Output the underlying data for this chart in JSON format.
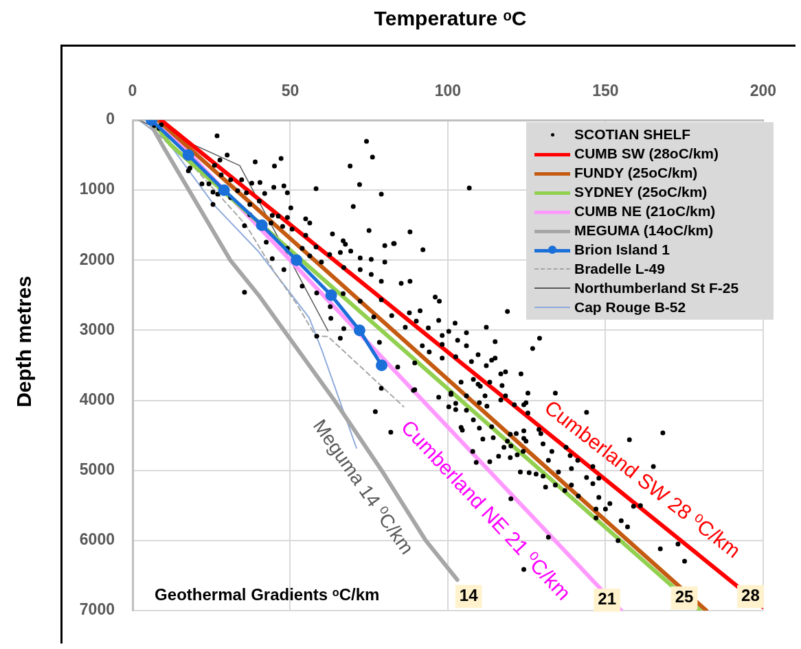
{
  "chart_data": {
    "type": "line",
    "xlabel": "Temperature ᵒC",
    "ylabel": "Depth metres",
    "xlim": [
      0,
      200
    ],
    "xticks": [
      0,
      50,
      100,
      150,
      200
    ],
    "ylim": [
      7000,
      0
    ],
    "yticks": [
      0,
      1000,
      2000,
      3000,
      4000,
      5000,
      6000,
      7000
    ],
    "grid": true,
    "legend": "top right",
    "series": [
      {
        "name": "SCOTIAN SHELF",
        "type": "scatter",
        "color": "#000000",
        "marker": "circle",
        "x": [
          6.9,
          8.4,
          9.1,
          26.8,
          74.2,
          76.1,
          30,
          47.1,
          38.9,
          69,
          45,
          27.7,
          26,
          18.2,
          17.7,
          22,
          24.2,
          28.1,
          31.1,
          34.6,
          37.8,
          40.4,
          44.8,
          48,
          58.2,
          72,
          78.9,
          25.5,
          27,
          31.1,
          33.3,
          36.1,
          41.9,
          49.1,
          25.5,
          37.2,
          40.2,
          50.2,
          70,
          44.3,
          46.2,
          49.1,
          54.9,
          56.2,
          37.2,
          35.5,
          43.9,
          47.6,
          50.6,
          54.9,
          63.4,
          75,
          66.8,
          67.5,
          58.2,
          80,
          82.8,
          42.4,
          49.1,
          53.8,
          62.5,
          65.9,
          69.2,
          72.2,
          75.7,
          80,
          56.2,
          59.9,
          44.3,
          48,
          67,
          72.2,
          75.7,
          78.9,
          35.5,
          53.8,
          58.4,
          66.8,
          72.2,
          78.9,
          62.7,
          62.9,
          67,
          76.5,
          58.4,
          78.3,
          65.9,
          88,
          92.1,
          83,
          96,
          97.3,
          118.9,
          112.2,
          97.1,
          91.2,
          87.8,
          85.2,
          88,
          82.2,
          86.5,
          90,
          93.8,
          100.3,
          102.3,
          105.9,
          98.2,
          98.2,
          103.1,
          105.9,
          94.1,
          91.9,
          89.5,
          84.1,
          98.2,
          102.5,
          107.5,
          109.6,
          112.2,
          113.9,
          115,
          116.8,
          118.3,
          123.2,
          129.1,
          126.9,
          115,
          108.1,
          110.3,
          104.2,
          101,
          105.9,
          110,
          112.4,
          116.8,
          121.1,
          124.8,
          125.4,
          100.3,
          102.5,
          108.1,
          104.2,
          113.9,
          119.8,
          124.1,
          111.1,
          114.4,
          124.8,
          81.9,
          77,
          89.1,
          97.1,
          78.9,
          128.9,
          134.1,
          144,
          157.6,
          168.2,
          165.2,
          161.1,
          158.9,
          173,
          175.1,
          167.4,
          154,
          157,
          155,
          151.4,
          150,
          147,
          147.9,
          147,
          147.9,
          146,
          144,
          141.4,
          139.2,
          137.1,
          134.1,
          131,
          135.1,
          139.2,
          138.8,
          141.2,
          146,
          137.5,
          133,
          131.9,
          130.2,
          128,
          125.8,
          123,
          131.9,
          124.1,
          120,
          130.2,
          129.5,
          123.9,
          122,
          119.8,
          117.8,
          116.1,
          113.3,
          109,
          107.9,
          104.6,
          110,
          120,
          118.9,
          124.1,
          121.7,
          102.5,
          101,
          105.9,
          111.8,
          109.6,
          113.3,
          117.2,
          118.3,
          125.4,
          124.1,
          89.5,
          106.8
        ],
        "values": [
          78,
          117,
          68,
          225,
          303,
          529,
          500,
          548,
          597,
          656,
          656,
          570,
          646,
          685,
          725,
          910,
          910,
          783,
          852,
          852,
          901,
          891,
          959,
          940,
          979,
          920,
          1057,
          1028,
          1057,
          1106,
          1008,
          1038,
          1048,
          1038,
          1204,
          1204,
          1155,
          1253,
          1234,
          1361,
          1371,
          1390,
          1410,
          1468,
          1351,
          1508,
          1468,
          1518,
          1557,
          1645,
          1625,
          1576,
          1723,
          1772,
          1811,
          1792,
          1762,
          1743,
          1831,
          1831,
          1919,
          1890,
          1870,
          1968,
          1988,
          2027,
          1939,
          2027,
          1978,
          2134,
          2105,
          2134,
          2203,
          2301,
          2457,
          2369,
          2467,
          2477,
          2585,
          2565,
          2663,
          2829,
          2976,
          2810,
          3084,
          3172,
          3113,
          1596,
          1850,
          1762,
          2526,
          2585,
          2731,
          2957,
          2859,
          2722,
          2751,
          2330,
          2301,
          2790,
          2957,
          2869,
          2967,
          3015,
          2898,
          3035,
          3074,
          3201,
          3143,
          3221,
          3309,
          3221,
          3466,
          3524,
          3397,
          3378,
          3446,
          3348,
          3505,
          3427,
          3397,
          3622,
          3593,
          3622,
          3113,
          3260,
          3162,
          3701,
          3799,
          3740,
          3897,
          3936,
          4034,
          4083,
          3995,
          4063,
          4034,
          4180,
          4092,
          4132,
          4278,
          4386,
          4376,
          4484,
          4435,
          4552,
          4533,
          4582,
          4455,
          4161,
          3857,
          3955,
          3828,
          4415,
          3897,
          4171,
          4562,
          4464,
          4944,
          5502,
          5512,
          6050,
          6295,
          6119,
          6001,
          5806,
          5718,
          5473,
          5551,
          5551,
          5385,
          5678,
          5111,
          5189,
          5101,
          5365,
          5209,
          5287,
          5209,
          5238,
          5023,
          4974,
          4788,
          4856,
          4944,
          4670,
          4729,
          4856,
          5081,
          5052,
          5032,
          5023,
          5953,
          6413,
          5404,
          4621,
          4474,
          4729,
          4778,
          4817,
          4670,
          4797,
          4876,
          4885,
          4729,
          4425,
          4396,
          4650,
          4582,
          4543,
          4474,
          4043,
          3916,
          4141,
          3936,
          3769,
          3740,
          3789,
          3936,
          3897,
          4063,
          3848,
          969
        ]
      },
      {
        "name": "CUMB SW (28oC/km)",
        "type": "line",
        "color": "#ff0000",
        "marker": "none",
        "line_style": "solid",
        "x": [
          9,
          200
        ],
        "values": [
          0,
          6950
        ]
      },
      {
        "name": "FUNDY (25oC/km)",
        "type": "line",
        "color": "#c55a11",
        "marker": "none",
        "line_style": "solid",
        "x": [
          8,
          182
        ],
        "values": [
          0,
          7000
        ]
      },
      {
        "name": "SYDNEY (25oC/km)",
        "type": "line",
        "color": "#92d050",
        "marker": "none",
        "line_style": "solid",
        "x": [
          6,
          12,
          17,
          180
        ],
        "values": [
          0,
          350,
          550,
          7000
        ]
      },
      {
        "name": "CUMB NE (21oC/km)",
        "type": "line",
        "color": "#ff99ff",
        "marker": "none",
        "line_style": "solid",
        "x": [
          8,
          155
        ],
        "values": [
          0,
          7000
        ]
      },
      {
        "name": "MEGUMA (14oC/km)",
        "type": "line",
        "color": "#a6a6a6",
        "marker": "none",
        "line_style": "solid",
        "x": [
          5,
          10,
          31,
          40,
          48,
          64,
          79,
          93,
          103
        ],
        "values": [
          0,
          400,
          2000,
          2500,
          3000,
          4000,
          5000,
          6000,
          6560
        ]
      },
      {
        "name": "Brion Island 1",
        "type": "line",
        "color": "#1a6fd8",
        "marker": "circle",
        "line_style": "solid",
        "x": [
          6,
          17.7,
          29,
          41,
          52,
          63,
          72,
          79
        ],
        "values": [
          0,
          500,
          1000,
          1500,
          2000,
          2500,
          3000,
          3500
        ]
      },
      {
        "name": "Bradelle L-49",
        "type": "line",
        "color": "#a6a6a6",
        "marker": "none",
        "line_style": "dashed",
        "x": [
          2,
          8,
          20,
          36,
          45,
          52,
          58,
          62,
          86
        ],
        "values": [
          0,
          200,
          700,
          1500,
          2170,
          2620,
          3080,
          3090,
          4090
        ]
      },
      {
        "name": "Northumberland St F-25",
        "type": "line",
        "color": "#595959",
        "marker": "none",
        "line_style": "solid",
        "x": [
          2,
          34,
          62
        ],
        "values": [
          0,
          650,
          3010
        ]
      },
      {
        "name": "Cap Rouge  B-52",
        "type": "line",
        "color": "#8eaadb",
        "marker": "none",
        "line_style": "solid",
        "x": [
          2,
          11,
          26,
          40,
          56,
          60,
          71
        ],
        "values": [
          0,
          300,
          1220,
          1880,
          2820,
          3280,
          4680
        ]
      }
    ],
    "annotations": [
      "Cumberland SW 28 ⁰C/km",
      "Cumberland NE 21 ⁰C/km",
      "Meguma 14 ⁰C/km",
      "Geothermal Gradients ᵒC/km",
      {
        "text": "14",
        "x": 106.6,
        "y": 6800
      },
      {
        "text": "21",
        "x": 150.5,
        "y": 6850
      },
      {
        "text": "25",
        "x": 175,
        "y": 6820
      },
      {
        "text": "28",
        "x": 196,
        "y": 6800
      }
    ]
  }
}
